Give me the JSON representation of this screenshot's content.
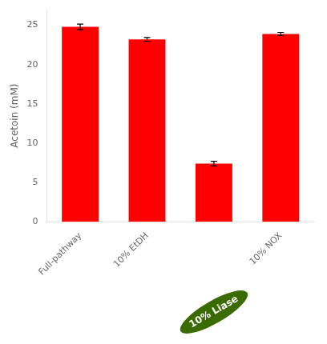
{
  "chart_data": {
    "type": "bar",
    "categories": [
      "Full-pathway",
      "10% EtDH",
      null,
      "10% NOX"
    ],
    "values": [
      24.8,
      23.2,
      7.4,
      23.9
    ],
    "errors": [
      0.35,
      0.25,
      0.3,
      0.2
    ],
    "color": "#FF0000",
    "ylabel": "Acetoin (mM)",
    "ylim": [
      0,
      27
    ],
    "yticks": [
      0,
      5,
      10,
      15,
      20,
      25
    ],
    "grid": false,
    "annotations": [
      {
        "text": "10% Liase",
        "x": 2,
        "color": "#3a6b00"
      }
    ]
  }
}
